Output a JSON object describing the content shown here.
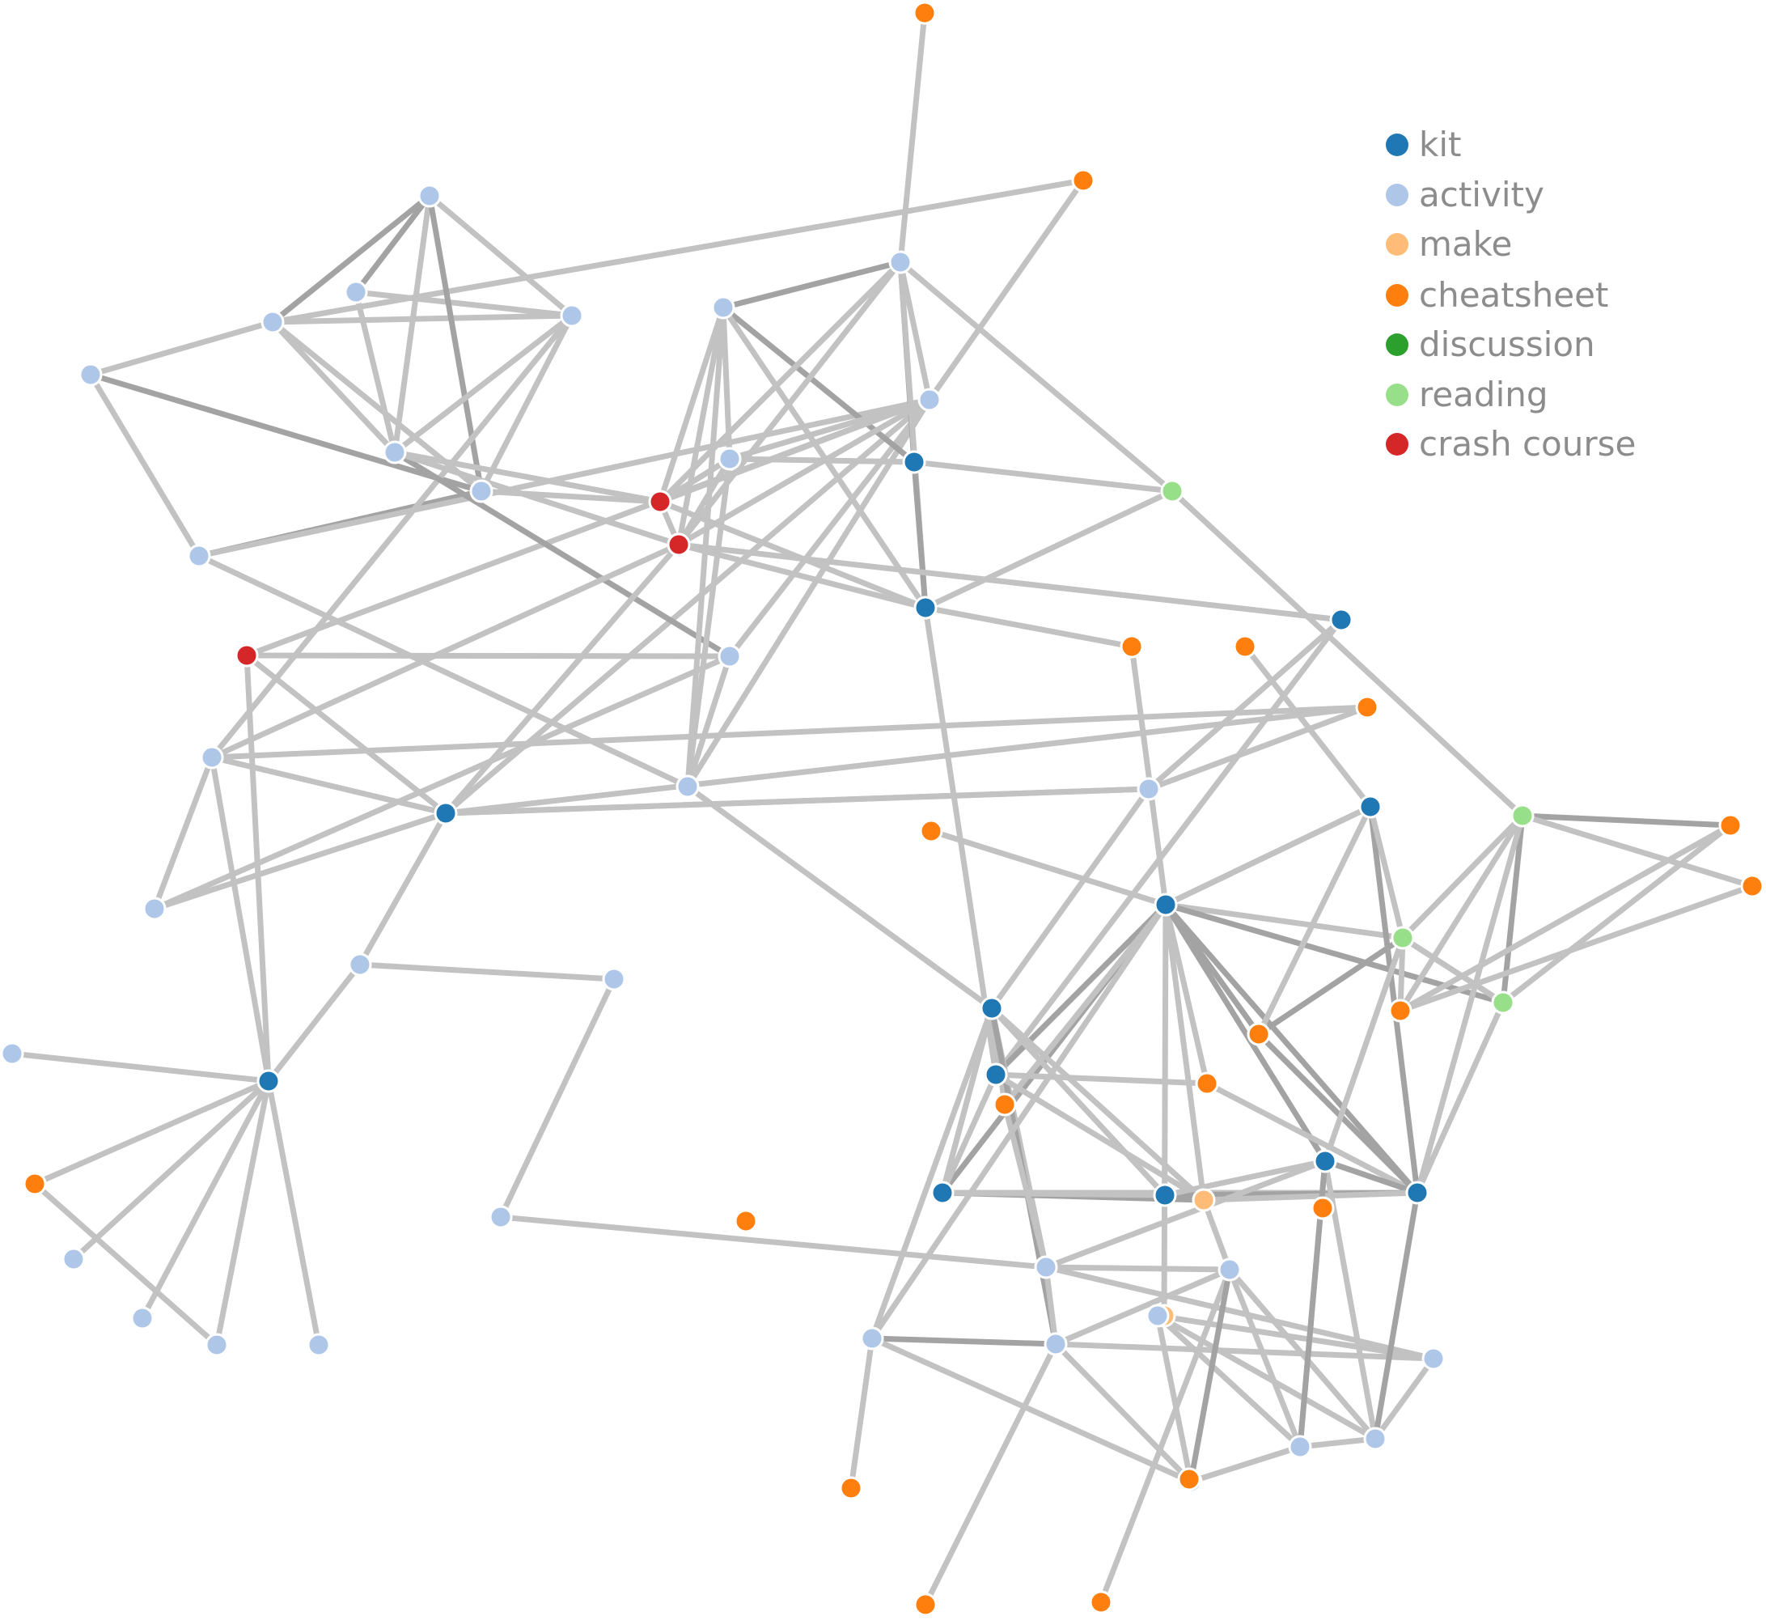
{
  "legend": {
    "items": [
      {
        "label": "kit",
        "color": "#1f77b4"
      },
      {
        "label": "activity",
        "color": "#aec7e8"
      },
      {
        "label": "make",
        "color": "#ffbb78"
      },
      {
        "label": "cheatsheet",
        "color": "#ff7f0e"
      },
      {
        "label": "discussion",
        "color": "#2ca02c"
      },
      {
        "label": "reading",
        "color": "#98df8a"
      },
      {
        "label": "crash course",
        "color": "#d62728"
      }
    ]
  },
  "colors": {
    "edge_light": "#c2c2c2",
    "edge_dark": "#a3a3a3",
    "node_stroke": "#ffffff"
  }
}
